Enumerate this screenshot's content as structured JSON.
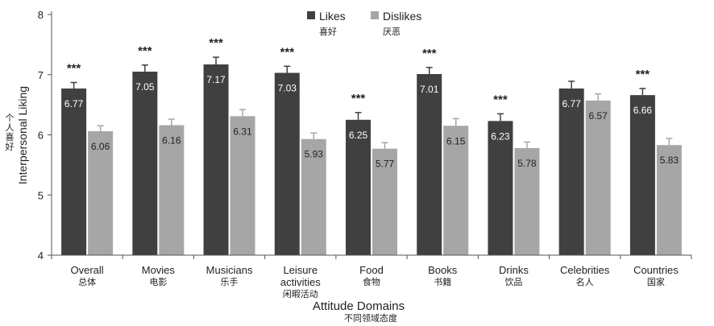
{
  "chart_data": {
    "type": "bar",
    "title": "",
    "xlabel": "Attitude Domains",
    "xlabel_cn": "不同领域态度",
    "ylabel": "Interpersonal Liking",
    "ylabel_cn": "个人喜好",
    "ylim": [
      4,
      8
    ],
    "yticks": [
      4,
      5,
      6,
      7,
      8
    ],
    "legend_position": "top-center",
    "categories": [
      {
        "en": [
          "Overall"
        ],
        "cn": "总体"
      },
      {
        "en": [
          "Movies"
        ],
        "cn": "电影"
      },
      {
        "en": [
          "Musicians"
        ],
        "cn": "乐手"
      },
      {
        "en": [
          "Leisure",
          "activities"
        ],
        "cn": "闲暇活动"
      },
      {
        "en": [
          "Food"
        ],
        "cn": "食物"
      },
      {
        "en": [
          "Books"
        ],
        "cn": "书籍"
      },
      {
        "en": [
          "Drinks"
        ],
        "cn": "饮品"
      },
      {
        "en": [
          "Celebrities"
        ],
        "cn": "名人"
      },
      {
        "en": [
          "Countries"
        ],
        "cn": "国家"
      }
    ],
    "series": [
      {
        "name": "Likes",
        "name_cn": "喜好",
        "color": "#404040",
        "label_color": "#ffffff",
        "values": [
          6.77,
          7.05,
          7.17,
          7.03,
          6.25,
          7.01,
          6.23,
          6.77,
          6.66
        ],
        "labels": [
          "6.77",
          "7.05",
          "7.17",
          "7.03",
          "6.25",
          "7.01",
          "6.23",
          "6.77",
          "6.66"
        ],
        "error": [
          0.1,
          0.11,
          0.12,
          0.11,
          0.12,
          0.11,
          0.12,
          0.12,
          0.11
        ]
      },
      {
        "name": "Dislikes",
        "name_cn": "厌恶",
        "color": "#a6a6a6",
        "label_color": "#222222",
        "values": [
          6.06,
          6.16,
          6.31,
          5.93,
          5.77,
          6.15,
          5.78,
          6.57,
          5.83
        ],
        "labels": [
          "6.06",
          "6.16",
          "6.31",
          "5.93",
          "5.77",
          "6.15",
          "5.78",
          "6.57",
          "5.83"
        ],
        "error": [
          0.09,
          0.1,
          0.11,
          0.1,
          0.1,
          0.12,
          0.1,
          0.11,
          0.11
        ]
      }
    ],
    "significance": [
      "***",
      "***",
      "***",
      "***",
      "***",
      "***",
      "***",
      "",
      "***"
    ]
  }
}
